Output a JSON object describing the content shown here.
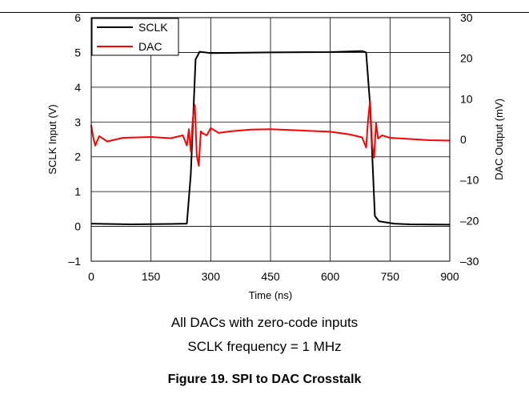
{
  "chart_data": {
    "type": "line",
    "xlabel": "Time (ns)",
    "ylabel_left": "SCLK Input (V)",
    "ylabel_right": "DAC Output (mV)",
    "xlim": [
      0,
      900
    ],
    "ylim_left": [
      -1,
      6
    ],
    "ylim_right": [
      -30,
      30
    ],
    "x_ticks": [
      "0",
      "150",
      "300",
      "450",
      "600",
      "750",
      "900"
    ],
    "y_left_ticks": [
      "–1",
      "0",
      "1",
      "2",
      "3",
      "4",
      "5",
      "6"
    ],
    "y_right_ticks": [
      "–30",
      "–20",
      "–10",
      "0",
      "10",
      "20",
      "30"
    ],
    "grid": true,
    "legend_position": "top-left",
    "series": [
      {
        "name": "SCLK",
        "axis": "left",
        "color": "#000000",
        "x": [
          0,
          100,
          200,
          240,
          250,
          262,
          272,
          300,
          450,
          600,
          680,
          690,
          700,
          712,
          722,
          760,
          800,
          900
        ],
        "y": [
          0.08,
          0.06,
          0.07,
          0.08,
          1.5,
          4.8,
          5.02,
          4.98,
          5.0,
          5.01,
          5.04,
          5.0,
          3.5,
          0.3,
          0.15,
          0.08,
          0.06,
          0.05
        ]
      },
      {
        "name": "DAC",
        "axis": "right",
        "color": "#ff0000",
        "x": [
          0,
          5,
          10,
          20,
          40,
          80,
          150,
          200,
          230,
          240,
          245,
          250,
          255,
          260,
          265,
          270,
          275,
          280,
          290,
          300,
          320,
          350,
          400,
          450,
          500,
          550,
          600,
          650,
          680,
          690,
          695,
          700,
          705,
          710,
          715,
          720,
          730,
          750,
          800,
          850,
          900
        ],
        "y": [
          3.5,
          0.5,
          -1.5,
          0.8,
          -0.5,
          0.4,
          0.6,
          0.3,
          1.0,
          -1.5,
          2.5,
          -3.0,
          5.0,
          8.5,
          -4.0,
          -6.5,
          2.0,
          1.5,
          1.0,
          2.8,
          1.6,
          2.0,
          2.4,
          2.5,
          2.3,
          2.1,
          1.9,
          1.2,
          0.5,
          -2.0,
          5.0,
          9.5,
          -1.0,
          -4.5,
          4.0,
          0.2,
          1.0,
          0.4,
          0.1,
          -0.2,
          -0.3
        ]
      }
    ]
  },
  "notes": [
    "All DACs with zero-code inputs",
    "SCLK frequency = 1 MHz"
  ],
  "figure_title": "Figure 19. SPI to DAC Crosstalk"
}
